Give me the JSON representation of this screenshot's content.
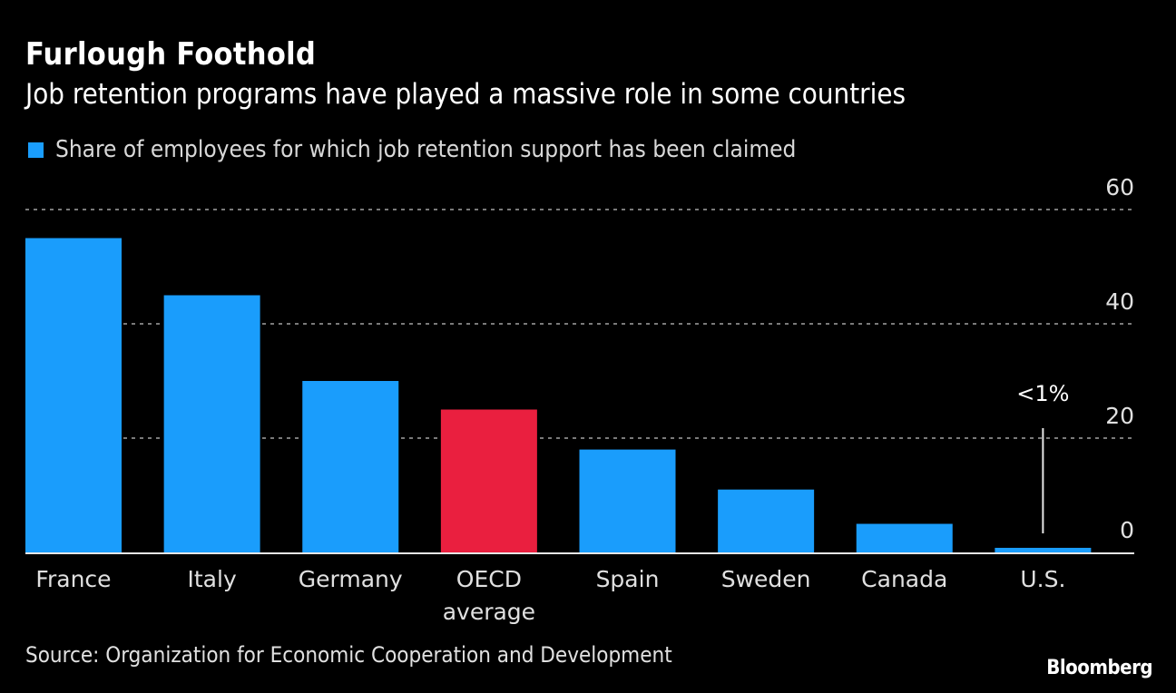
{
  "header": {
    "title": "Furlough Foothold",
    "subtitle": "Job retention programs have played a massive role in some countries"
  },
  "footer": {
    "source": "Source: Organization for Economic Cooperation and Development",
    "brand": "Bloomberg"
  },
  "colors": {
    "background": "#000000",
    "bar": "#1a9dfc",
    "highlight": "#ea1f3f",
    "grid": "#7a7a7a",
    "baseline": "#e6e6e6"
  },
  "chart_data": {
    "type": "bar",
    "title": "Furlough Foothold",
    "subtitle": "Job retention programs have played a massive role in some countries",
    "legend": {
      "entries": [
        "Share of employees for which job retention support has been claimed"
      ],
      "placement": "top-left"
    },
    "categories": [
      "France",
      "Italy",
      "Germany",
      "OECD average",
      "Spain",
      "Sweden",
      "Canada",
      "U.S."
    ],
    "category_lines": [
      [
        "France"
      ],
      [
        "Italy"
      ],
      [
        "Germany"
      ],
      [
        "OECD",
        "average"
      ],
      [
        "Spain"
      ],
      [
        "Sweden"
      ],
      [
        "Canada"
      ],
      [
        "U.S."
      ]
    ],
    "series": [
      {
        "name": "Share of employees for which job retention support has been claimed",
        "values": [
          55,
          45,
          30,
          25,
          18,
          11,
          5,
          0.8
        ]
      }
    ],
    "highlight_index": 3,
    "ylim": [
      0,
      60
    ],
    "yticks": [
      0,
      20,
      40,
      60
    ],
    "y_axis_position": "right",
    "grid": true,
    "xlabel": "",
    "ylabel": "",
    "annotations": [
      {
        "category": "U.S.",
        "text": "<1%"
      }
    ]
  }
}
